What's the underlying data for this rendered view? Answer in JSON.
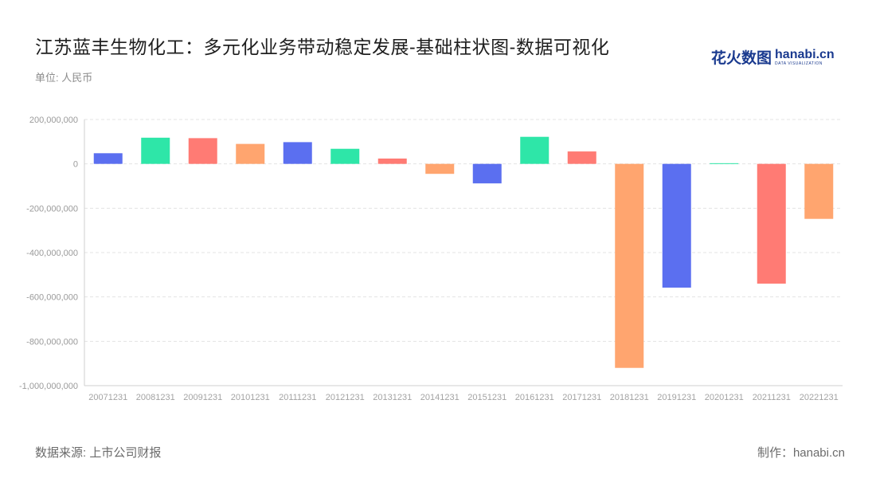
{
  "header": {
    "title": "江苏蓝丰生物化工：多元化业务带动稳定发展-基础柱状图-数据可视化",
    "unit": "单位: 人民币"
  },
  "logo": {
    "cn": "花火数图",
    "en": "hanabi.cn",
    "tagline": "DATA VISUALIZATION"
  },
  "footer": {
    "source": "数据来源: 上市公司财报",
    "maker": "制作：hanabi.cn"
  },
  "colors": [
    "#5b6ff0",
    "#2ee6a8",
    "#ff7b74",
    "#ffa56f"
  ],
  "chart_data": {
    "type": "bar",
    "categories": [
      "20071231",
      "20081231",
      "20091231",
      "20101231",
      "20111231",
      "20121231",
      "20131231",
      "20141231",
      "20151231",
      "20161231",
      "20171231",
      "20181231",
      "20191231",
      "20201231",
      "20211231",
      "20221231"
    ],
    "values": [
      48000000,
      118000000,
      116000000,
      90000000,
      98000000,
      68000000,
      24000000,
      -45000000,
      -88000000,
      122000000,
      56000000,
      -920000000,
      -558000000,
      3000000,
      -540000000,
      -248000000
    ],
    "ylim": [
      -1000000000,
      200000000
    ],
    "yticks": [
      200000000,
      0,
      -200000000,
      -400000000,
      -600000000,
      -800000000,
      -1000000000
    ],
    "ytick_labels": [
      "200,000,000",
      "0",
      "-200,000,000",
      "-400,000,000",
      "-600,000,000",
      "-800,000,000",
      "-1,000,000,000"
    ],
    "grid": true,
    "xlabel": "",
    "ylabel": ""
  }
}
